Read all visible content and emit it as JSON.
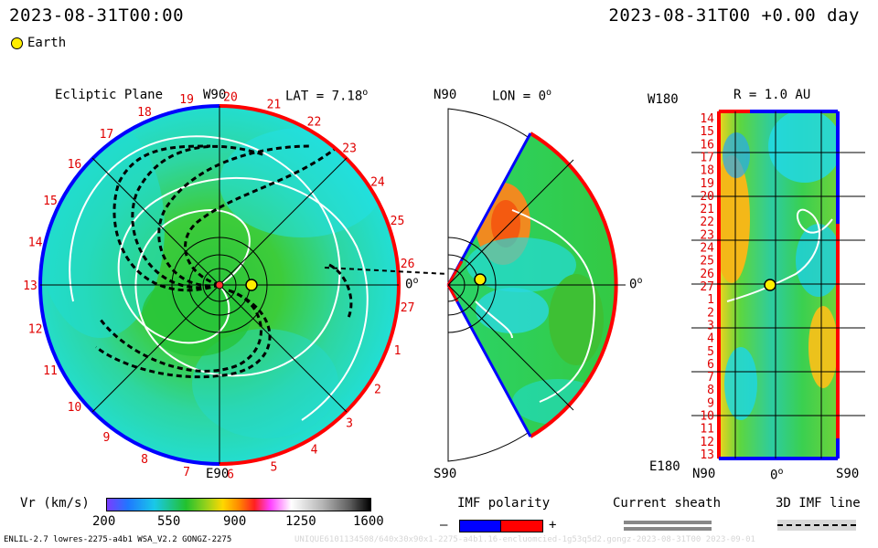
{
  "header": {
    "datetime_left": "2023-08-31T00:00",
    "datetime_right": "2023-08-31T00 +0.00 day",
    "earth_label": "Earth"
  },
  "ecliptic_panel": {
    "title": "Ecliptic Plane",
    "top_label": "W90",
    "bottom_label": "E90",
    "lat_label": "LAT = 7.18",
    "zero_label": "0",
    "rim_numbers": [
      "19",
      "20",
      "21",
      "22",
      "23",
      "24",
      "25",
      "26",
      "27",
      "1",
      "2",
      "3",
      "4",
      "5",
      "6",
      "7",
      "8",
      "9",
      "10",
      "11",
      "12",
      "13",
      "14",
      "15",
      "16",
      "17",
      "18"
    ]
  },
  "meridional_panel": {
    "top_label": "N90",
    "bottom_label": "S90",
    "lon_label": "LON = 0",
    "zero_label": "0"
  },
  "radial_panel": {
    "title": "R = 1.0 AU",
    "top_left_label": "W180",
    "bottom_left_label": "E180",
    "bottom_labels": [
      "N90",
      "0",
      "S90"
    ],
    "left_numbers": [
      "14",
      "15",
      "16",
      "17",
      "18",
      "19",
      "20",
      "21",
      "22",
      "23",
      "24",
      "25",
      "26",
      "27",
      "1",
      "2",
      "3",
      "4",
      "5",
      "6",
      "7",
      "8",
      "9",
      "10",
      "11",
      "12",
      "13"
    ]
  },
  "legend": {
    "vr_title": "Vr (km/s)",
    "vr_ticks": [
      "200",
      "550",
      "900",
      "1250",
      "1600"
    ],
    "imf_title": "IMF polarity",
    "imf_minus": "–",
    "imf_plus": "+",
    "sheath_title": "Current sheath",
    "imf_line_title": "3D IMF line"
  },
  "footer": {
    "left": "ENLIL-2.7 lowres-2275-a4b1 WSA_V2.2 GONGZ-2275",
    "right": "UNIQUE6101134508/640x30x90x1-2275-a4b1.16-encluomcied-1g53q5d2.gongz-2023-08-31T00 2023-09-01"
  },
  "colors": {
    "positive_polarity": "#ff0000",
    "negative_polarity": "#0000ff",
    "earth": "#ffee00",
    "slow_wind": "#19c8e8",
    "medium_wind": "#22c12e"
  }
}
